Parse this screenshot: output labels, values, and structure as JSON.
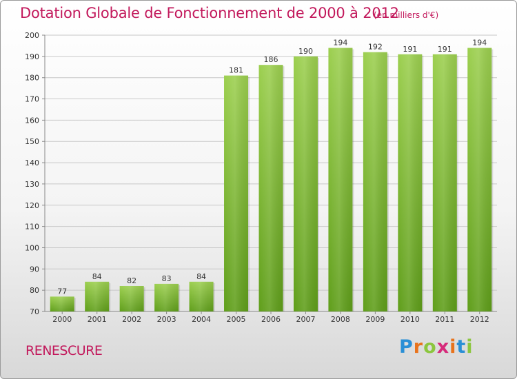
{
  "title": "Dotation Globale de Fonctionnement de 2000 à 2012",
  "subtitle": "(en milliers d'€)",
  "commune": "RENESCURE",
  "logo": {
    "text": "Proxiti",
    "letters": [
      "P",
      "r",
      "o",
      "x",
      "i",
      "t",
      "i"
    ],
    "colors": [
      "#2a8fd6",
      "#e8731c",
      "#8cc63f",
      "#d62a7a",
      "#e8731c",
      "#2a8fd6",
      "#8cc63f"
    ]
  },
  "colors": {
    "title": "#c2185b",
    "bar_top": "#9ccf4f",
    "bar_bottom": "#5f9e1a",
    "grid": "#c8c8c8"
  },
  "chart_data": {
    "type": "bar",
    "title": "Dotation Globale de Fonctionnement de 2000 à 2012",
    "subtitle": "(en milliers d'€)",
    "categories": [
      "2000",
      "2001",
      "2002",
      "2003",
      "2004",
      "2005",
      "2006",
      "2007",
      "2008",
      "2009",
      "2010",
      "2011",
      "2012"
    ],
    "values": [
      77,
      84,
      82,
      83,
      84,
      181,
      186,
      190,
      194,
      192,
      191,
      191,
      194
    ],
    "ylim": [
      70,
      200
    ],
    "yticks": [
      70,
      80,
      90,
      100,
      110,
      120,
      130,
      140,
      150,
      160,
      170,
      180,
      190,
      200
    ],
    "grid": true,
    "xlabel": "",
    "ylabel": ""
  }
}
